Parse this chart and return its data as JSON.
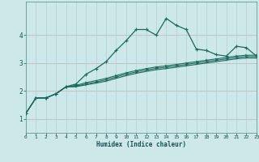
{
  "xlabel": "Humidex (Indice chaleur)",
  "bg_color": "#cce8e8",
  "line_color": "#1a6b5a",
  "xlim": [
    0,
    23
  ],
  "ylim": [
    0.5,
    5.2
  ],
  "yticks": [
    1,
    2,
    3,
    4
  ],
  "xticks": [
    0,
    1,
    2,
    3,
    4,
    5,
    6,
    7,
    8,
    9,
    10,
    11,
    12,
    13,
    14,
    15,
    16,
    17,
    18,
    19,
    20,
    21,
    22,
    23
  ],
  "curve1_x": [
    0,
    1,
    2,
    3,
    4,
    5,
    6,
    7,
    8,
    9,
    10,
    11,
    12,
    13,
    14,
    15,
    16,
    17,
    18,
    19,
    20,
    21,
    22,
    23
  ],
  "curve1_y": [
    1.2,
    1.75,
    1.75,
    1.9,
    2.15,
    2.25,
    2.6,
    2.8,
    3.05,
    3.45,
    3.8,
    4.2,
    4.2,
    4.0,
    4.6,
    4.35,
    4.2,
    3.5,
    3.45,
    3.3,
    3.25,
    3.6,
    3.55,
    3.25
  ],
  "curve2_x": [
    0,
    1,
    2,
    3,
    4,
    5,
    6,
    7,
    8,
    9,
    10,
    11,
    12,
    13,
    14,
    15,
    16,
    17,
    18,
    19,
    20,
    21,
    22,
    23
  ],
  "curve2_y": [
    1.2,
    1.75,
    1.75,
    1.9,
    2.15,
    2.2,
    2.3,
    2.37,
    2.45,
    2.55,
    2.65,
    2.73,
    2.8,
    2.86,
    2.9,
    2.95,
    3.0,
    3.05,
    3.1,
    3.15,
    3.2,
    3.25,
    3.28,
    3.28
  ],
  "curve3_x": [
    0,
    1,
    2,
    3,
    4,
    5,
    6,
    7,
    8,
    9,
    10,
    11,
    12,
    13,
    14,
    15,
    16,
    17,
    18,
    19,
    20,
    21,
    22,
    23
  ],
  "curve3_y": [
    1.2,
    1.75,
    1.75,
    1.9,
    2.15,
    2.17,
    2.25,
    2.32,
    2.4,
    2.5,
    2.6,
    2.68,
    2.75,
    2.81,
    2.85,
    2.9,
    2.95,
    3.0,
    3.05,
    3.1,
    3.15,
    3.2,
    3.23,
    3.23
  ],
  "curve4_x": [
    0,
    1,
    2,
    3,
    4,
    5,
    6,
    7,
    8,
    9,
    10,
    11,
    12,
    13,
    14,
    15,
    16,
    17,
    18,
    19,
    20,
    21,
    22,
    23
  ],
  "curve4_y": [
    1.2,
    1.75,
    1.75,
    1.9,
    2.15,
    2.15,
    2.22,
    2.28,
    2.35,
    2.45,
    2.55,
    2.63,
    2.7,
    2.76,
    2.8,
    2.85,
    2.9,
    2.95,
    3.0,
    3.05,
    3.1,
    3.15,
    3.18,
    3.18
  ]
}
